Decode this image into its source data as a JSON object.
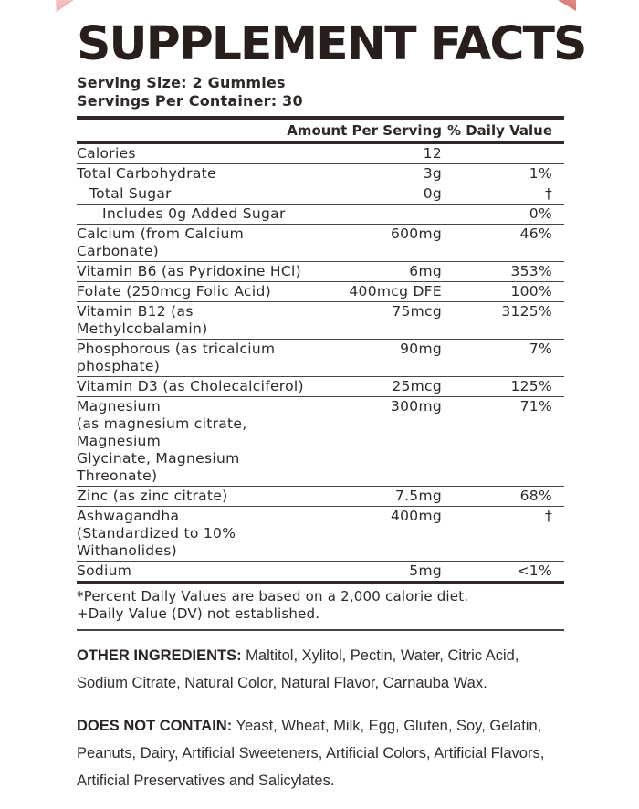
{
  "title": "SUPPLEMENT FACTS",
  "serving": {
    "size": "Serving Size: 2 Gummies",
    "per_container": "Servings Per Container: 30"
  },
  "table": {
    "headers": {
      "amount": "Amount Per Serving",
      "daily_value": "% Daily Value"
    },
    "rows": [
      {
        "name": "Calories",
        "amount": "12",
        "dv": "",
        "indent": 0
      },
      {
        "name": "Total Carbohydrate",
        "amount": "3g",
        "dv": "1%",
        "indent": 0
      },
      {
        "name": "Total Sugar",
        "amount": "0g",
        "dv": "†",
        "indent": 1
      },
      {
        "name": "Includes 0g Added Sugar",
        "amount": "",
        "dv": "0%",
        "indent": 2
      },
      {
        "name": "Calcium (from Calcium Carbonate)",
        "amount": "600mg",
        "dv": "46%",
        "indent": 0
      },
      {
        "name": "Vitamin B6 (as Pyridoxine HCl)",
        "amount": "6mg",
        "dv": "353%",
        "indent": 0
      },
      {
        "name": "Folate (250mcg Folic Acid)",
        "amount": "400mcg DFE",
        "dv": "100%",
        "indent": 0
      },
      {
        "name": "Vitamin B12 (as Methylcobalamin)",
        "amount": "75mcg",
        "dv": "3125%",
        "indent": 0
      },
      {
        "name": "Phosphorous (as tricalcium phosphate)",
        "amount": "90mg",
        "dv": "7%",
        "indent": 0
      },
      {
        "name": "Vitamin D3 (as Cholecalciferol)",
        "amount": "25mcg",
        "dv": "125%",
        "indent": 0
      },
      {
        "name": "Magnesium",
        "detail_lines": [
          "(as magnesium citrate, Magnesium",
          "Glycinate, Magnesium Threonate)"
        ],
        "amount": "300mg",
        "dv": "71%",
        "indent": 0
      },
      {
        "name": "Zinc (as zinc citrate)",
        "amount": "7.5mg",
        "dv": "68%",
        "indent": 0
      },
      {
        "name": "Ashwagandha",
        "detail_lines": [
          "(Standardized to 10% Withanolides)"
        ],
        "amount": "400mg",
        "dv": "†",
        "indent": 0
      },
      {
        "name": "Sodium",
        "amount": "5mg",
        "dv": "<1%",
        "indent": 0
      }
    ],
    "footnotes": [
      "*Percent Daily Values are based on a 2,000 calorie diet.",
      "+Daily Value (DV) not established."
    ]
  },
  "other_ingredients": {
    "label": "OTHER INGREDIENTS:",
    "text": " Maltitol, Xylitol, Pectin, Water, Citric Acid, Sodium Citrate, Natural Color, Natural Flavor, Carnauba Wax."
  },
  "does_not_contain": {
    "label": "DOES NOT CONTAIN:",
    "text": " Yeast, Wheat, Milk, Egg, Gluten, Soy, Gelatin, Peanuts, Dairy, Artificial Sweeteners, Artificial Colors, Artificial Flavors, Artificial Preservatives and Salicylates."
  },
  "colors": {
    "text": "#2e2927",
    "title": "#281f1d",
    "accent_triangle_left": "#eda3a1",
    "accent_triangle_right": "#cf6560",
    "background": "#ffffff"
  }
}
